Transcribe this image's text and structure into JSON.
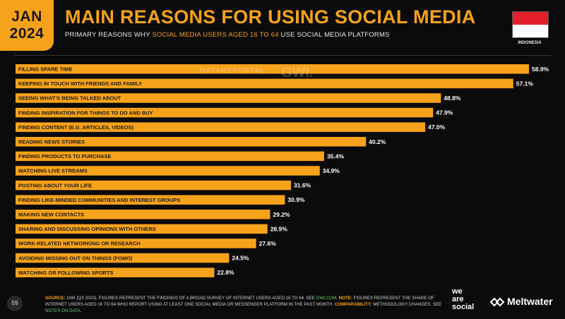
{
  "header": {
    "month": "JAN",
    "year": "2024",
    "title": "MAIN REASONS FOR USING SOCIAL MEDIA",
    "subtitle_pre": "PRIMARY REASONS WHY ",
    "subtitle_highlight": "SOCIAL MEDIA USERS AGED 16 TO 64",
    "subtitle_post": " USE SOCIAL MEDIA PLATFORMS",
    "country": "INDONESIA"
  },
  "watermarks": {
    "datareportal": "DATAREPORTAL",
    "gwi": "GWI."
  },
  "chart_data": {
    "type": "bar",
    "orientation": "horizontal",
    "categories": [
      "FILLING SPARE TIME",
      "KEEPING IN TOUCH WITH FRIENDS AND FAMILY",
      "SEEING WHAT'S BEING TALKED ABOUT",
      "FINDING INSPIRATION FOR THINGS TO DO AND BUY",
      "FINDING CONTENT (E.G. ARTICLES, VIDEOS)",
      "READING NEWS STORIES",
      "FINDING PRODUCTS TO PURCHASE",
      "WATCHING LIVE STREAMS",
      "POSTING ABOUT YOUR LIFE",
      "FINDING LIKE-MINDED COMMUNITIES AND INTEREST GROUPS",
      "MAKING NEW CONTACTS",
      "SHARING AND DISCUSSING OPINIONS WITH OTHERS",
      "WORK-RELATED NETWORKING OR RESEARCH",
      "AVOIDING MISSING OUT ON THINGS (FOMO)",
      "WATCHING OR FOLLOWING SPORTS"
    ],
    "values": [
      58.9,
      57.1,
      48.8,
      47.9,
      47.0,
      40.2,
      35.4,
      34.9,
      31.6,
      30.9,
      29.2,
      28.9,
      27.6,
      24.5,
      22.8
    ],
    "value_labels": [
      "58.9%",
      "57.1%",
      "48.8%",
      "47.9%",
      "47.0%",
      "40.2%",
      "35.4%",
      "34.9%",
      "31.6%",
      "30.9%",
      "29.2%",
      "28.9%",
      "27.6%",
      "24.5%",
      "22.8%"
    ],
    "bar_color": "#f7a21b"
  },
  "footer": {
    "page_number": "59",
    "source_label": "SOURCE:",
    "source_text": " GWI (Q3 2023). FIGURES REPRESENT THE FINDINGS OF A BROAD SURVEY OF INTERNET USERS AGED 16 TO 64. SEE ",
    "source_link": "GWI.COM",
    "note_label": "NOTE:",
    "note_text": " FIGURES REPRESENT THE SHARE OF INTERNET USERS AGED 16 TO 64 WHO REPORT USING AT LEAST ONE SOCIAL MEDIA OR MESSENGER PLATFORM IN THE PAST MONTH. ",
    "comparability_label": "COMPARABILITY:",
    "comparability_text": " METHODOLOGY CHANGES. SEE ",
    "notes_link": "NOTES ON DATA",
    "brand1_line1": "we",
    "brand1_line2": "are",
    "brand1_line3": "social",
    "brand2": "Meltwater"
  },
  "colors": {
    "accent": "#f7a21b",
    "background": "#0b0b0b",
    "flag_red": "#e3202a",
    "link_green": "#6bd06b"
  }
}
